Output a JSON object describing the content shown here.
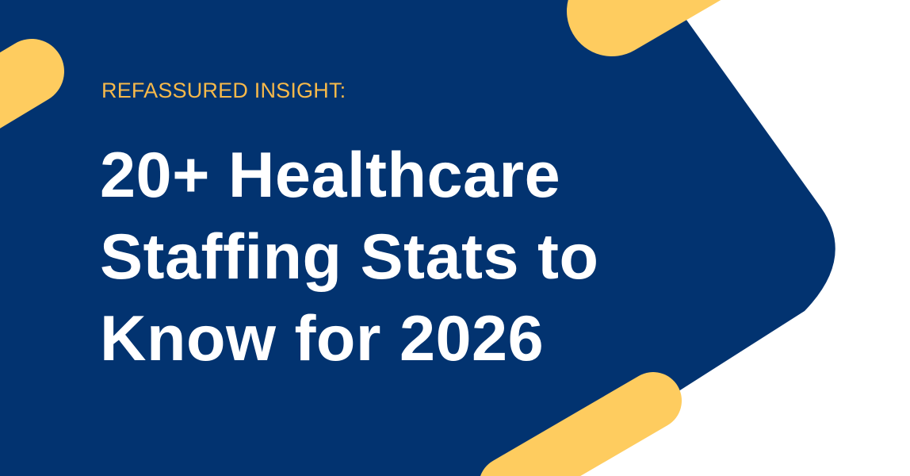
{
  "banner": {
    "eyebrow": "REFASSURED INSIGHT:",
    "title_lines": [
      "20+ Healthcare",
      "Staffing Stats to",
      "Know for 2026"
    ]
  },
  "colors": {
    "background": "#ffffff",
    "navy_shape": "#023370",
    "accent_pills": "#fecc5f",
    "eyebrow_text": "#f7b94a",
    "title_text": "#ffffff"
  }
}
